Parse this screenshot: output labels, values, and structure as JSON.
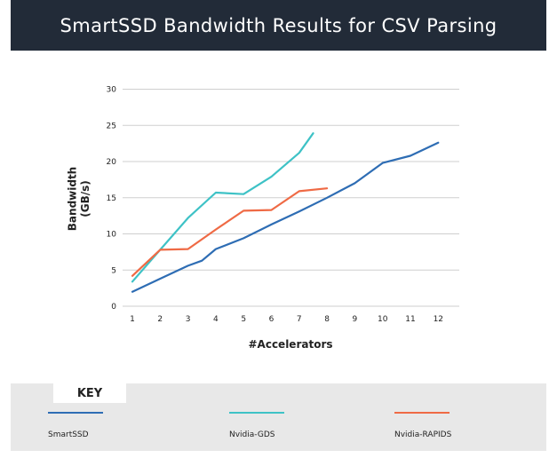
{
  "header": {
    "title": "SmartSSD Bandwidth Results for CSV Parsing"
  },
  "chart_data": {
    "type": "line",
    "title": "SmartSSD Bandwidth Results for CSV Parsing",
    "xlabel": "#Accelerators",
    "ylabel": "Bandwidth (GB/s)",
    "ylabel_lines": [
      "Bandwidth",
      "(GB/s)"
    ],
    "x": [
      1,
      2,
      3,
      4,
      5,
      6,
      7,
      8,
      9,
      10,
      11,
      12
    ],
    "ylim": [
      0,
      30
    ],
    "yticks": [
      0,
      5,
      10,
      15,
      20,
      25,
      30
    ],
    "grid": true,
    "legend_position": "bottom",
    "series": [
      {
        "name": "SmartSSD",
        "color": "#2e6db4",
        "x": [
          1,
          2,
          3,
          3.5,
          4,
          5,
          6,
          7,
          8,
          9,
          10,
          11,
          12
        ],
        "values": [
          2.0,
          3.8,
          5.6,
          6.3,
          7.9,
          9.4,
          11.3,
          13.1,
          15.0,
          17.0,
          19.8,
          20.8,
          22.6
        ]
      },
      {
        "name": "Nvidia-GDS",
        "color": "#3ec2c6",
        "x": [
          1,
          2,
          3,
          4,
          5,
          6,
          7,
          7.5
        ],
        "values": [
          3.4,
          7.8,
          12.2,
          15.7,
          15.5,
          17.9,
          21.2,
          23.9
        ]
      },
      {
        "name": "Nvidia-RAPIDS",
        "color": "#ef6a45",
        "x": [
          1,
          2,
          3,
          4,
          5,
          6,
          7,
          8
        ],
        "values": [
          4.2,
          7.8,
          7.9,
          10.6,
          13.2,
          13.3,
          15.9,
          16.3
        ]
      }
    ]
  },
  "key": {
    "heading": "KEY",
    "items": [
      {
        "label": "SmartSSD",
        "color": "#2e6db4"
      },
      {
        "label": "Nvidia-GDS",
        "color": "#3ec2c6"
      },
      {
        "label": "Nvidia-RAPIDS",
        "color": "#ef6a45"
      }
    ]
  }
}
